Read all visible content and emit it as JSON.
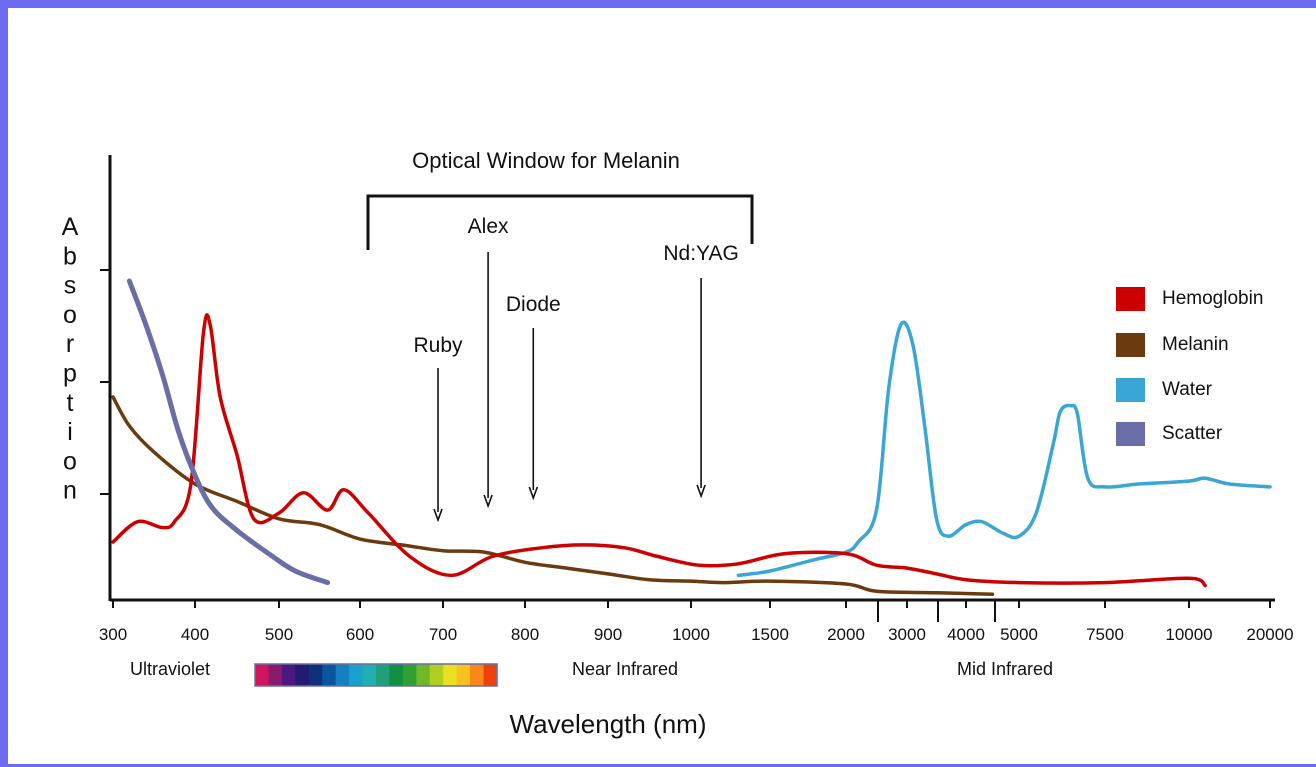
{
  "chart_data": {
    "type": "line",
    "title": "Optical Window for Melanin",
    "xlabel": "Wavelength (nm)",
    "ylabel": "Absorption",
    "x_ticks": [
      "300",
      "400",
      "500",
      "600",
      "700",
      "800",
      "900",
      "1000",
      "1500",
      "2000",
      "3000",
      "4000",
      "5000",
      "7500",
      "10000",
      "20000"
    ],
    "regions": [
      "Ultraviolet",
      "Near Infrared",
      "Mid Infrared"
    ],
    "window": {
      "start": 600,
      "end": 1500
    },
    "lasers": [
      {
        "name": "Ruby",
        "wavelength": 694
      },
      {
        "name": "Alex",
        "wavelength": 755
      },
      {
        "name": "Diode",
        "wavelength": 810
      },
      {
        "name": "Nd:YAG",
        "wavelength": 1064
      }
    ],
    "y_range": [
      0,
      1
    ],
    "spectrum_colors": [
      "#d4145a",
      "#8a1a6e",
      "#4a1880",
      "#241a70",
      "#10307a",
      "#0a54a0",
      "#1480c0",
      "#1aa0cc",
      "#20b0b0",
      "#20a078",
      "#109040",
      "#30a030",
      "#70b828",
      "#b0d020",
      "#e8e020",
      "#f8c020",
      "#f88818",
      "#f04010"
    ],
    "series": [
      {
        "name": "Hemoglobin",
        "color": "#cc0000",
        "points": [
          [
            300,
            0.2
          ],
          [
            330,
            0.27
          ],
          [
            360,
            0.25
          ],
          [
            375,
            0.27
          ],
          [
            395,
            0.4
          ],
          [
            410,
            0.92
          ],
          [
            418,
            0.95
          ],
          [
            430,
            0.7
          ],
          [
            450,
            0.5
          ],
          [
            470,
            0.28
          ],
          [
            500,
            0.3
          ],
          [
            530,
            0.37
          ],
          [
            560,
            0.31
          ],
          [
            580,
            0.38
          ],
          [
            610,
            0.3
          ],
          [
            660,
            0.15
          ],
          [
            710,
            0.085
          ],
          [
            760,
            0.15
          ],
          [
            820,
            0.18
          ],
          [
            870,
            0.19
          ],
          [
            920,
            0.18
          ],
          [
            960,
            0.15
          ],
          [
            1050,
            0.12
          ],
          [
            1300,
            0.125
          ],
          [
            1600,
            0.16
          ],
          [
            2000,
            0.16
          ],
          [
            2500,
            0.12
          ],
          [
            3000,
            0.11
          ],
          [
            3500,
            0.09
          ],
          [
            4000,
            0.07
          ],
          [
            5000,
            0.06
          ],
          [
            7500,
            0.06
          ],
          [
            10000,
            0.075
          ],
          [
            12000,
            0.05
          ]
        ]
      },
      {
        "name": "Melanin",
        "color": "#6b3a0e",
        "points": [
          [
            300,
            0.7
          ],
          [
            320,
            0.6
          ],
          [
            350,
            0.51
          ],
          [
            400,
            0.4
          ],
          [
            450,
            0.34
          ],
          [
            500,
            0.28
          ],
          [
            550,
            0.26
          ],
          [
            600,
            0.21
          ],
          [
            650,
            0.19
          ],
          [
            700,
            0.17
          ],
          [
            750,
            0.165
          ],
          [
            800,
            0.13
          ],
          [
            850,
            0.11
          ],
          [
            900,
            0.09
          ],
          [
            950,
            0.07
          ],
          [
            1000,
            0.065
          ],
          [
            1200,
            0.06
          ],
          [
            1500,
            0.065
          ],
          [
            2000,
            0.055
          ],
          [
            2500,
            0.03
          ],
          [
            3500,
            0.025
          ],
          [
            4500,
            0.02
          ]
        ]
      },
      {
        "name": "Water",
        "color": "#3aa6d6",
        "points": [
          [
            1300,
            0.085
          ],
          [
            1500,
            0.1
          ],
          [
            1800,
            0.14
          ],
          [
            2000,
            0.165
          ],
          [
            2200,
            0.2
          ],
          [
            2500,
            0.31
          ],
          [
            2700,
            0.73
          ],
          [
            2900,
            0.95
          ],
          [
            3100,
            0.88
          ],
          [
            3300,
            0.6
          ],
          [
            3500,
            0.28
          ],
          [
            3700,
            0.22
          ],
          [
            4000,
            0.26
          ],
          [
            4300,
            0.27
          ],
          [
            4700,
            0.23
          ],
          [
            5000,
            0.22
          ],
          [
            5500,
            0.3
          ],
          [
            6000,
            0.54
          ],
          [
            6200,
            0.65
          ],
          [
            6500,
            0.67
          ],
          [
            6700,
            0.64
          ],
          [
            7000,
            0.42
          ],
          [
            7500,
            0.39
          ],
          [
            8500,
            0.4
          ],
          [
            10000,
            0.41
          ],
          [
            12000,
            0.42
          ],
          [
            15000,
            0.4
          ],
          [
            20000,
            0.39
          ]
        ]
      },
      {
        "name": "Scatter",
        "color": "#6a6ea6",
        "points": [
          [
            320,
            1.1
          ],
          [
            340,
            0.95
          ],
          [
            360,
            0.78
          ],
          [
            380,
            0.58
          ],
          [
            400,
            0.43
          ],
          [
            420,
            0.32
          ],
          [
            450,
            0.24
          ],
          [
            490,
            0.155
          ],
          [
            520,
            0.1
          ],
          [
            560,
            0.06
          ]
        ]
      }
    ]
  }
}
